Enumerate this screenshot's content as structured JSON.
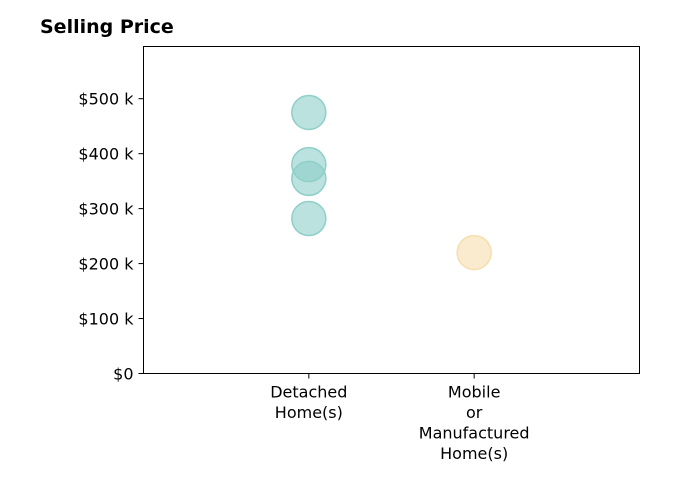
{
  "chart_data": {
    "type": "scatter",
    "title": "Selling Price",
    "xlabel": "",
    "ylabel": "",
    "categories": [
      [
        "Detached",
        "Home(s)"
      ],
      [
        "Mobile",
        "or",
        "Manufactured",
        "Home(s)"
      ]
    ],
    "y_ticks": [
      {
        "value": 0,
        "label": "$0"
      },
      {
        "value": 100000,
        "label": "$100 k"
      },
      {
        "value": 200000,
        "label": "$200 k"
      },
      {
        "value": 300000,
        "label": "$300 k"
      },
      {
        "value": 400000,
        "label": "$400 k"
      },
      {
        "value": 500000,
        "label": "$500 k"
      }
    ],
    "ylim": [
      0,
      595000
    ],
    "xlim": [
      0,
      3
    ],
    "grid": false,
    "legend": "none",
    "points": [
      {
        "category_index": 0,
        "y": 475000,
        "color": "#8ecfc8"
      },
      {
        "category_index": 0,
        "y": 380000,
        "color": "#8ecfc8"
      },
      {
        "category_index": 0,
        "y": 355000,
        "color": "#8ecfc8"
      },
      {
        "category_index": 0,
        "y": 282000,
        "color": "#8ecfc8"
      },
      {
        "category_index": 1,
        "y": 220000,
        "color": "#f6deae"
      }
    ]
  }
}
